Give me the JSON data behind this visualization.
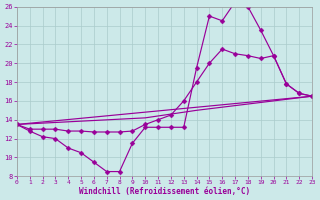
{
  "xlabel": "Windchill (Refroidissement éolien,°C)",
  "xlim": [
    0,
    23
  ],
  "ylim": [
    8,
    26
  ],
  "yticks": [
    8,
    10,
    12,
    14,
    16,
    18,
    20,
    22,
    24,
    26
  ],
  "xticks": [
    0,
    1,
    2,
    3,
    4,
    5,
    6,
    7,
    8,
    9,
    10,
    11,
    12,
    13,
    14,
    15,
    16,
    17,
    18,
    19,
    20,
    21,
    22,
    23
  ],
  "bg_color": "#cce9e9",
  "line_color": "#990099",
  "grid_color": "#aacccc",
  "lines": [
    {
      "x": [
        0,
        1,
        2,
        3,
        4,
        5,
        6,
        7,
        8,
        9,
        10,
        11,
        12,
        13,
        14,
        15,
        16,
        17,
        18,
        19,
        20,
        21,
        22,
        23
      ],
      "y": [
        13.5,
        12.8,
        12.2,
        12.0,
        11.0,
        10.5,
        9.5,
        8.5,
        8.5,
        11.5,
        13.2,
        13.2,
        13.2,
        13.2,
        19.5,
        25.0,
        24.5,
        26.5,
        26.0,
        23.5,
        20.8,
        17.8,
        16.8,
        16.5
      ],
      "has_markers": true
    },
    {
      "x": [
        0,
        1,
        2,
        3,
        4,
        5,
        6,
        7,
        8,
        9,
        10,
        11,
        12,
        13,
        14,
        15,
        16,
        17,
        18,
        19,
        20,
        21,
        22,
        23
      ],
      "y": [
        13.5,
        13.0,
        13.0,
        13.0,
        12.8,
        12.8,
        12.7,
        12.7,
        12.7,
        12.8,
        13.5,
        14.0,
        14.5,
        16.0,
        18.0,
        20.0,
        21.5,
        21.0,
        20.8,
        20.5,
        20.8,
        17.8,
        16.8,
        16.5
      ],
      "has_markers": true
    },
    {
      "x": [
        0,
        23
      ],
      "y": [
        13.5,
        16.5
      ],
      "has_markers": false
    },
    {
      "x": [
        0,
        10,
        14,
        23
      ],
      "y": [
        13.5,
        14.2,
        15.0,
        16.5
      ],
      "has_markers": false
    }
  ],
  "markersize": 2.5,
  "linewidth": 0.85
}
